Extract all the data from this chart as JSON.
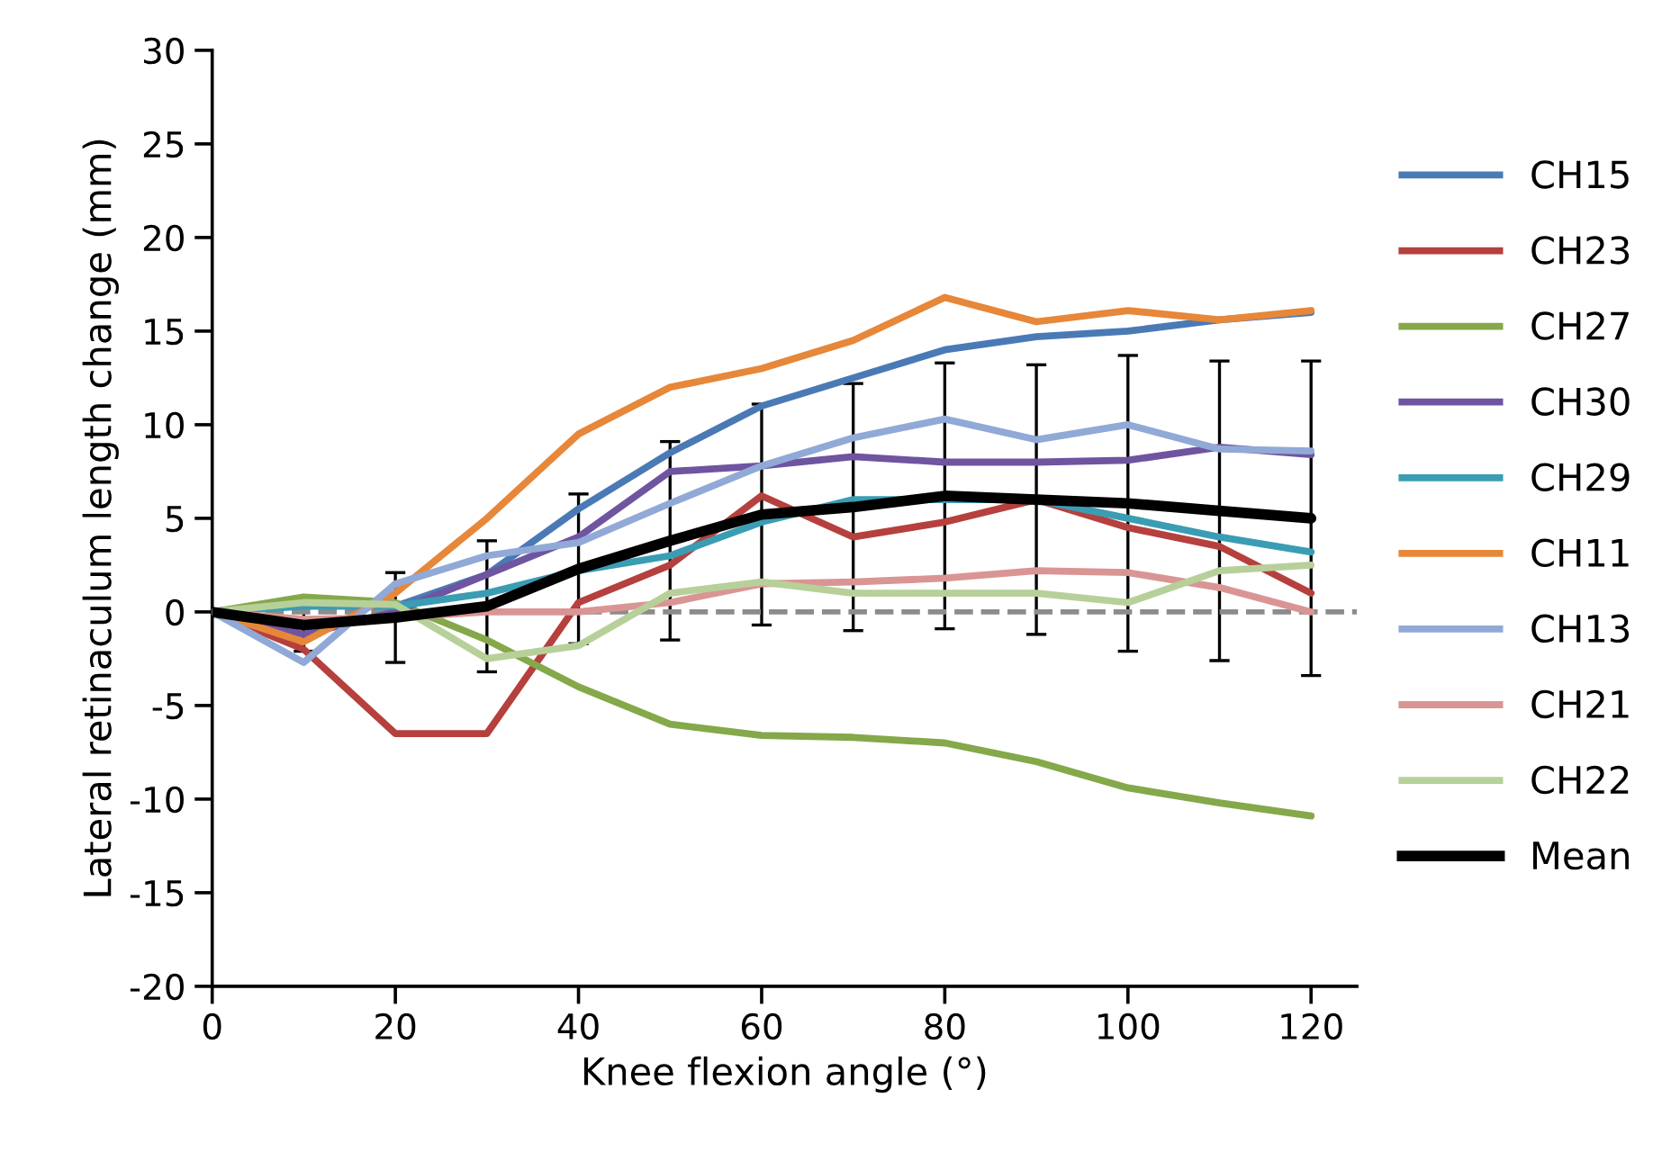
{
  "chart_data": {
    "type": "line",
    "xlabel": "Knee flexion angle (°)",
    "ylabel": "Lateral retinaculum length change (mm)",
    "x": [
      0,
      10,
      20,
      30,
      40,
      50,
      60,
      70,
      80,
      90,
      100,
      110,
      120
    ],
    "xlim": [
      0,
      125
    ],
    "xticks": [
      0,
      20,
      40,
      60,
      80,
      100,
      120
    ],
    "ylim": [
      -20,
      30
    ],
    "yticks": [
      -20,
      -15,
      -10,
      -5,
      0,
      5,
      10,
      15,
      20,
      25,
      30
    ],
    "grid": false,
    "legend": "right",
    "marker": "none",
    "line_style": "solid",
    "ref_lines": [
      {
        "axis": "y",
        "value": 0,
        "color": "#8c8c8c",
        "line_style": "dashed"
      }
    ],
    "series": [
      {
        "name": "CH15",
        "color": "#4a7ab5",
        "values": [
          0,
          0.5,
          0.3,
          2,
          5.5,
          8.5,
          11,
          12.5,
          14,
          14.7,
          15,
          15.6,
          16
        ]
      },
      {
        "name": "CH23",
        "color": "#b5403d",
        "values": [
          0,
          -2,
          -6.5,
          -6.5,
          0.5,
          2.5,
          6.2,
          4,
          4.8,
          6,
          4.5,
          3.5,
          1
        ]
      },
      {
        "name": "CH27",
        "color": "#84a84a",
        "values": [
          0,
          0.8,
          0.5,
          -1.5,
          -4,
          -6,
          -6.6,
          -6.7,
          -7,
          -8,
          -9.4,
          -10.2,
          -10.9
        ]
      },
      {
        "name": "CH30",
        "color": "#6f54a0",
        "values": [
          0,
          -1.2,
          0,
          2,
          4,
          7.5,
          7.8,
          8.3,
          8,
          8,
          8.1,
          8.8,
          8.4
        ]
      },
      {
        "name": "CH29",
        "color": "#3a9db3",
        "values": [
          0,
          0.3,
          0.3,
          1,
          2.2,
          3,
          4.8,
          6,
          6,
          6,
          5,
          4,
          3.2
        ]
      },
      {
        "name": "CH11",
        "color": "#e6873a",
        "values": [
          0,
          -1.6,
          1,
          5,
          9.5,
          12,
          13,
          14.5,
          16.8,
          15.5,
          16.1,
          15.6,
          16.1
        ]
      },
      {
        "name": "CH13",
        "color": "#91a9d6",
        "values": [
          0,
          -2.7,
          1.5,
          3,
          3.7,
          5.8,
          7.8,
          9.3,
          10.3,
          9.2,
          10,
          8.7,
          8.6
        ]
      },
      {
        "name": "CH21",
        "color": "#d99594",
        "values": [
          0,
          -0.4,
          -0.3,
          0,
          0,
          0.5,
          1.5,
          1.6,
          1.8,
          2.2,
          2.1,
          1.3,
          0
        ]
      },
      {
        "name": "CH22",
        "color": "#b7d09a",
        "values": [
          0,
          0.5,
          0.4,
          -2.5,
          -1.8,
          1,
          1.6,
          1,
          1,
          1,
          0.5,
          2.2,
          2.5
        ]
      },
      {
        "name": "Mean",
        "color": "#000000",
        "values": [
          0,
          -0.7,
          -0.3,
          0.3,
          2.3,
          3.8,
          5.2,
          5.6,
          6.2,
          6.0,
          5.8,
          5.4,
          5.0
        ],
        "errors": [
          null,
          1.4,
          2.4,
          3.5,
          4.0,
          5.3,
          5.9,
          6.6,
          7.1,
          7.2,
          7.9,
          8.0,
          8.4
        ]
      }
    ]
  }
}
